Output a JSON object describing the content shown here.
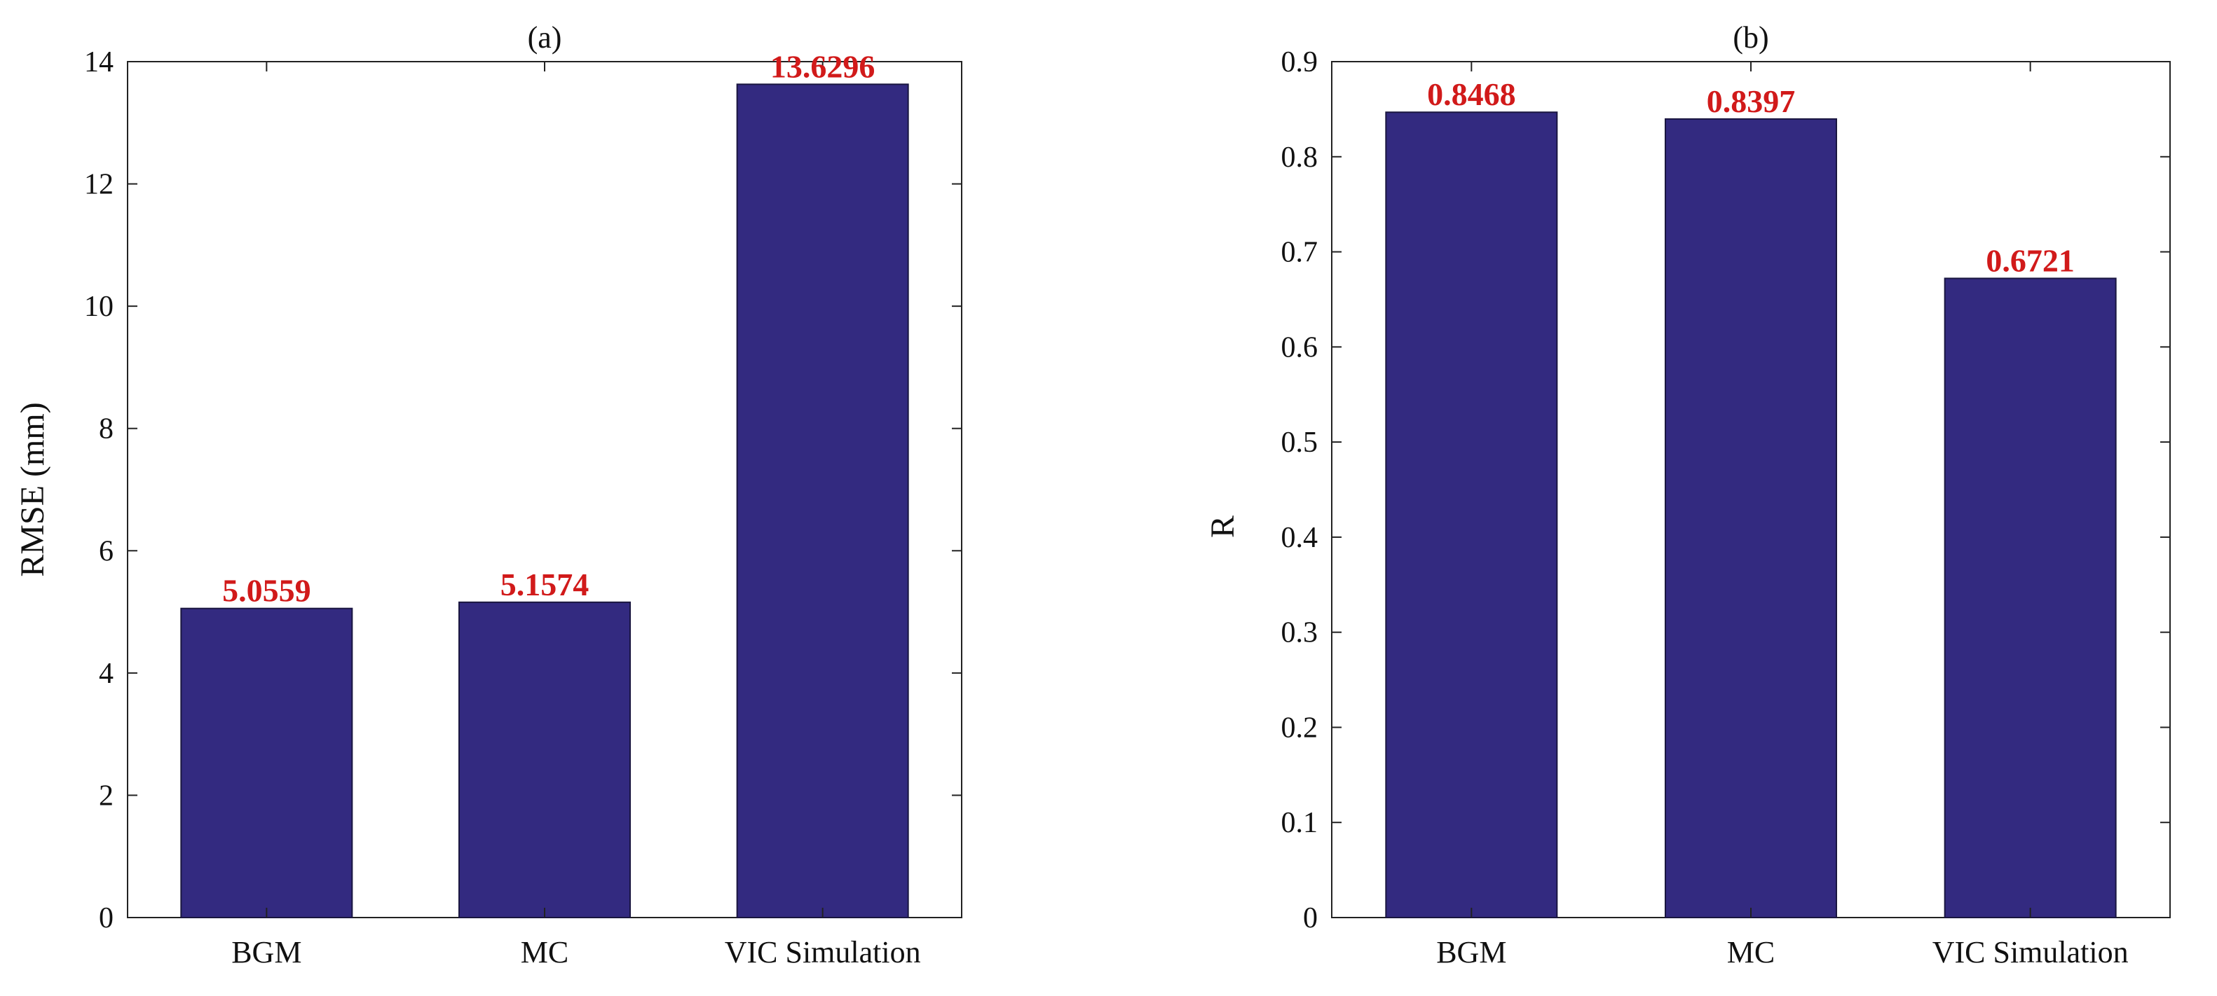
{
  "chart_data": [
    {
      "type": "bar",
      "title": "(a)",
      "xlabel": "",
      "ylabel": "RMSE (mm)",
      "categories": [
        "BGM",
        "MC",
        "VIC Simulation"
      ],
      "values": [
        5.0559,
        5.1574,
        13.6296
      ],
      "data_labels": [
        "5.0559",
        "5.1574",
        "13.6296"
      ],
      "ylim": [
        0,
        14
      ],
      "yticks": [
        0,
        2,
        4,
        6,
        8,
        10,
        12,
        14
      ],
      "ytick_labels": [
        "0",
        "2",
        "4",
        "6",
        "8",
        "10",
        "12",
        "14"
      ],
      "grid": false,
      "bar_color": "#332a80",
      "label_color": "#d11a1a"
    },
    {
      "type": "bar",
      "title": "(b)",
      "xlabel": "",
      "ylabel": "R",
      "categories": [
        "BGM",
        "MC",
        "VIC Simulation"
      ],
      "values": [
        0.8468,
        0.8397,
        0.6721
      ],
      "data_labels": [
        "0.8468",
        "0.8397",
        "0.6721"
      ],
      "ylim": [
        0,
        0.9
      ],
      "yticks": [
        0,
        0.1,
        0.2,
        0.3,
        0.4,
        0.5,
        0.6,
        0.7,
        0.8,
        0.9
      ],
      "ytick_labels": [
        "0",
        "0.1",
        "0.2",
        "0.3",
        "0.4",
        "0.5",
        "0.6",
        "0.7",
        "0.8",
        "0.9"
      ],
      "grid": false,
      "bar_color": "#332a80",
      "label_color": "#d11a1a"
    }
  ]
}
